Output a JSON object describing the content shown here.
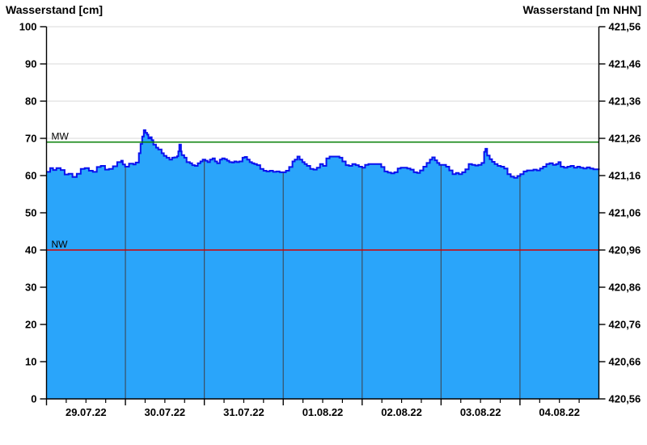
{
  "titles": {
    "left": "Wasserstand [cm]",
    "right": "Wasserstand [m NHN]"
  },
  "chart_data": {
    "type": "area",
    "title_left": "Wasserstand [cm]",
    "title_right": "Wasserstand [m NHN]",
    "x_axis": {
      "unit": "hours since 29.07.22 00:00",
      "span_hours": 168,
      "day_labels": [
        "29.07.22",
        "30.07.22",
        "31.07.22",
        "01.08.22",
        "02.08.22",
        "03.08.22",
        "04.08.22"
      ],
      "major_tick_every_h": 24,
      "minor_tick_every_h": 6
    },
    "y_left": {
      "label": "Wasserstand [cm]",
      "min": 0,
      "max": 100,
      "step": 10,
      "tick_labels": [
        "0",
        "10",
        "20",
        "30",
        "40",
        "50",
        "60",
        "70",
        "80",
        "90",
        "100"
      ]
    },
    "y_right": {
      "label": "Wasserstand [m NHN]",
      "min": 420.56,
      "max": 421.56,
      "step": 0.1,
      "tick_labels": [
        "420,56",
        "420,66",
        "420,76",
        "420,86",
        "420,96",
        "421,06",
        "421,16",
        "421,26",
        "421,36",
        "421,46",
        "421,56"
      ]
    },
    "reference_lines": [
      {
        "label": "MW",
        "value_cm": 69,
        "color": "#007d00"
      },
      {
        "label": "NW",
        "value_cm": 40,
        "color": "#d40000"
      }
    ],
    "series": [
      {
        "name": "Wasserstand",
        "unit": "cm",
        "points": [
          [
            0,
            61
          ],
          [
            1.1,
            62
          ],
          [
            2,
            61.5
          ],
          [
            3,
            62
          ],
          [
            4.3,
            61.5
          ],
          [
            5.5,
            60.3
          ],
          [
            6.7,
            60.5
          ],
          [
            7.9,
            59.6
          ],
          [
            9.2,
            60.5
          ],
          [
            10.4,
            61.8
          ],
          [
            11.6,
            62
          ],
          [
            12.9,
            61.3
          ],
          [
            14.1,
            61
          ],
          [
            15.3,
            62.3
          ],
          [
            16.5,
            62.6
          ],
          [
            17.8,
            61.6
          ],
          [
            19,
            61.8
          ],
          [
            20.2,
            62.5
          ],
          [
            21.5,
            63.6
          ],
          [
            22.7,
            64
          ],
          [
            23.2,
            63
          ],
          [
            23.9,
            62.4
          ],
          [
            25.1,
            63.2
          ],
          [
            26.4,
            63
          ],
          [
            27.1,
            63.5
          ],
          [
            28.1,
            66
          ],
          [
            28.6,
            68.5
          ],
          [
            29.1,
            70.5
          ],
          [
            29.6,
            72.2
          ],
          [
            30.1,
            71.5
          ],
          [
            30.6,
            71
          ],
          [
            31,
            70
          ],
          [
            31.5,
            70.3
          ],
          [
            32,
            69.5
          ],
          [
            32.5,
            68.3
          ],
          [
            33.3,
            67.5
          ],
          [
            34,
            67
          ],
          [
            35,
            66
          ],
          [
            35.7,
            65.3
          ],
          [
            36.5,
            64.8
          ],
          [
            37.4,
            64.3
          ],
          [
            38.2,
            64.8
          ],
          [
            38.9,
            64.9
          ],
          [
            39.7,
            65.2
          ],
          [
            40.1,
            66.5
          ],
          [
            40.4,
            68.3
          ],
          [
            40.9,
            66.5
          ],
          [
            41.1,
            65.5
          ],
          [
            41.9,
            64.8
          ],
          [
            42.6,
            63.6
          ],
          [
            43.6,
            63.3
          ],
          [
            44.3,
            62.8
          ],
          [
            45.1,
            62.6
          ],
          [
            46,
            63.3
          ],
          [
            46.8,
            63.8
          ],
          [
            47.5,
            64.3
          ],
          [
            48.3,
            64
          ],
          [
            49,
            63.6
          ],
          [
            49.7,
            64.3
          ],
          [
            50.5,
            64.6
          ],
          [
            51.2,
            63.8
          ],
          [
            51.9,
            63.3
          ],
          [
            52.7,
            64.3
          ],
          [
            53.4,
            64.6
          ],
          [
            54.2,
            64.4
          ],
          [
            54.9,
            64
          ],
          [
            55.6,
            63.6
          ],
          [
            56.4,
            63.5
          ],
          [
            57.1,
            63.8
          ],
          [
            57.8,
            63.6
          ],
          [
            58.6,
            63.8
          ],
          [
            59.6,
            64.8
          ],
          [
            60.3,
            65
          ],
          [
            61,
            64.3
          ],
          [
            61.8,
            63.6
          ],
          [
            62.5,
            63.3
          ],
          [
            63.2,
            63.1
          ],
          [
            64,
            62.8
          ],
          [
            65,
            61.8
          ],
          [
            66,
            61.3
          ],
          [
            66.9,
            61.1
          ],
          [
            67.9,
            61.3
          ],
          [
            68.9,
            61
          ],
          [
            69.9,
            61.1
          ],
          [
            70.9,
            60.9
          ],
          [
            71.9,
            60.9
          ],
          [
            72.8,
            61.3
          ],
          [
            73.8,
            62.3
          ],
          [
            74.8,
            63.8
          ],
          [
            75.5,
            64.3
          ],
          [
            76.3,
            65.1
          ],
          [
            77,
            64.3
          ],
          [
            77.8,
            63.6
          ],
          [
            78.5,
            63.1
          ],
          [
            79.2,
            62.6
          ],
          [
            80.2,
            61.8
          ],
          [
            81.2,
            61.6
          ],
          [
            82.2,
            62.1
          ],
          [
            83.2,
            63.1
          ],
          [
            84.1,
            62.6
          ],
          [
            85.1,
            64.6
          ],
          [
            86.1,
            65.1
          ],
          [
            87.1,
            65.1
          ],
          [
            88.1,
            65.1
          ],
          [
            89.1,
            64.8
          ],
          [
            90,
            63.8
          ],
          [
            91,
            62.8
          ],
          [
            92,
            62.6
          ],
          [
            93,
            63.1
          ],
          [
            94,
            62.8
          ],
          [
            95,
            62.4
          ],
          [
            96,
            62.1
          ],
          [
            96.9,
            62.9
          ],
          [
            97.9,
            63.1
          ],
          [
            98.9,
            63.1
          ],
          [
            99.9,
            63.1
          ],
          [
            100.9,
            63.1
          ],
          [
            101.8,
            62.3
          ],
          [
            102.8,
            61.1
          ],
          [
            103.8,
            60.8
          ],
          [
            104.8,
            60.6
          ],
          [
            105.8,
            60.9
          ],
          [
            106.8,
            61.9
          ],
          [
            107.7,
            62.1
          ],
          [
            108.7,
            62.1
          ],
          [
            109.7,
            61.9
          ],
          [
            110.7,
            61.6
          ],
          [
            111.7,
            60.9
          ],
          [
            112.7,
            60.7
          ],
          [
            113.6,
            61.4
          ],
          [
            114.6,
            62.4
          ],
          [
            115.6,
            63.4
          ],
          [
            116.6,
            64.3
          ],
          [
            117.3,
            64.9
          ],
          [
            118.1,
            64.1
          ],
          [
            118.8,
            63.4
          ],
          [
            119.5,
            62.9
          ],
          [
            120.5,
            62.9
          ],
          [
            121.5,
            62.4
          ],
          [
            122.5,
            61.4
          ],
          [
            123.5,
            60.4
          ],
          [
            124.5,
            60.7
          ],
          [
            125.4,
            60.4
          ],
          [
            126.4,
            60.9
          ],
          [
            127.4,
            61.7
          ],
          [
            128.4,
            63.1
          ],
          [
            129.4,
            62.9
          ],
          [
            130.4,
            62.7
          ],
          [
            131.3,
            62.9
          ],
          [
            132.3,
            63.4
          ],
          [
            133.1,
            66.4
          ],
          [
            133.5,
            67.2
          ],
          [
            134,
            65.4
          ],
          [
            134.8,
            64.4
          ],
          [
            135.5,
            63.7
          ],
          [
            136.3,
            63.1
          ],
          [
            137.2,
            62.6
          ],
          [
            138.2,
            62.4
          ],
          [
            139.2,
            61.9
          ],
          [
            140.2,
            60.4
          ],
          [
            141.2,
            59.7
          ],
          [
            142.2,
            59.4
          ],
          [
            143.2,
            59.9
          ],
          [
            144.1,
            60.4
          ],
          [
            145.1,
            61.1
          ],
          [
            146.1,
            61.4
          ],
          [
            147.1,
            61.4
          ],
          [
            148.1,
            61.6
          ],
          [
            149.1,
            61.4
          ],
          [
            150.1,
            61.9
          ],
          [
            151,
            62.4
          ],
          [
            152,
            63.1
          ],
          [
            153,
            63.3
          ],
          [
            154,
            62.9
          ],
          [
            155,
            63.1
          ],
          [
            155.7,
            63.6
          ],
          [
            156.4,
            62.4
          ],
          [
            157.4,
            62.1
          ],
          [
            158.4,
            62.4
          ],
          [
            159.4,
            62.6
          ],
          [
            160.4,
            62.1
          ],
          [
            161.4,
            62.4
          ],
          [
            162.3,
            62.1
          ],
          [
            163.3,
            61.9
          ],
          [
            164.3,
            62.2
          ],
          [
            165.3,
            61.9
          ],
          [
            166.3,
            61.7
          ],
          [
            168,
            61.9
          ]
        ]
      }
    ],
    "colors": {
      "area_fill": "#2aa5fa",
      "area_line": "#0a10ee",
      "grid": "#d8d8d8",
      "day_line": "#3a4f63",
      "axis": "#000000"
    }
  }
}
